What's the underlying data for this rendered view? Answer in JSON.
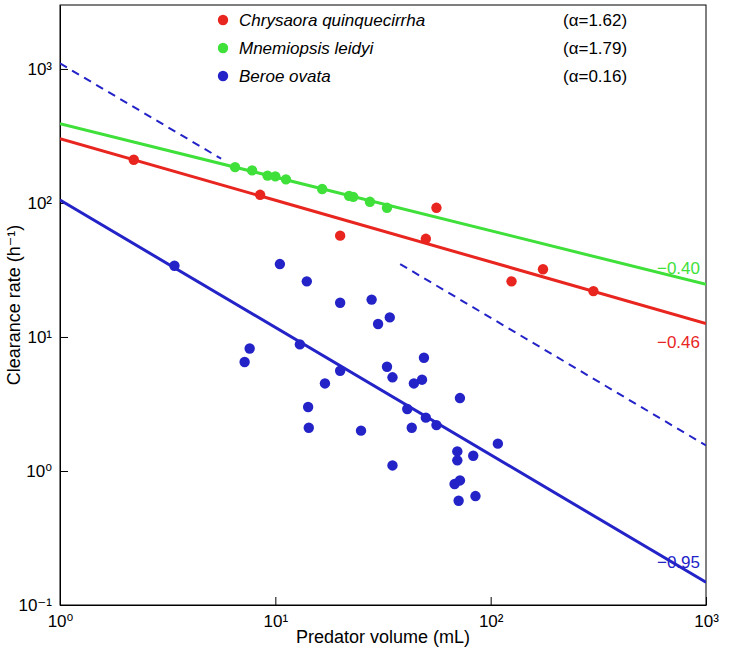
{
  "chart_data": {
    "type": "scatter",
    "xlabel": "Predator volume (mL)",
    "ylabel": "Clearance rate (h⁻¹)",
    "log": true,
    "grid": false,
    "legend": "top",
    "marker": "circle",
    "xlim": [
      1,
      1000
    ],
    "ylim": [
      0.1,
      3000
    ],
    "xticks": [
      {
        "value": 1,
        "label": "10⁰"
      },
      {
        "value": 10,
        "label": "10¹"
      },
      {
        "value": 100,
        "label": "10²"
      },
      {
        "value": 1000,
        "label": "10³"
      }
    ],
    "yticks": [
      {
        "value": 0.1,
        "label": "10⁻¹"
      },
      {
        "value": 1,
        "label": "10⁰"
      },
      {
        "value": 10,
        "label": "10¹"
      },
      {
        "value": 100,
        "label": "10²"
      },
      {
        "value": 1000,
        "label": "10³"
      }
    ],
    "series": [
      {
        "name": "Chrysaora quinquecirrha",
        "color": "#e8251f",
        "alpha": {
          "value": 1.62,
          "label": "(α=1.62)"
        },
        "x": [
          2.2,
          8.5,
          20,
          50,
          56,
          125,
          175,
          300
        ],
        "values": [
          210,
          115,
          57,
          54,
          92,
          26,
          32,
          22
        ],
        "fit": {
          "x": [
            1,
            1000
          ],
          "values": [
            302,
            12.6
          ]
        },
        "slope": {
          "value": -0.46,
          "label": "−0.46"
        }
      },
      {
        "name": "Mnemiopsis leidyi",
        "color": "#3fe03a",
        "alpha": {
          "value": 1.79,
          "label": "(α=1.79)"
        },
        "x": [
          6.5,
          7.8,
          9.2,
          10,
          11.2,
          16.5,
          22,
          23,
          27.5,
          33
        ],
        "values": [
          185,
          175,
          160,
          158,
          150,
          127,
          113,
          111,
          102,
          92
        ],
        "fit": {
          "x": [
            1,
            1000
          ],
          "values": [
            391,
            24.7
          ]
        },
        "slope": {
          "value": -0.4,
          "label": "−0.40"
        }
      },
      {
        "name": "Beroe ovata",
        "color": "#2323c8",
        "alpha": {
          "value": 0.16,
          "label": "(α=0.16)"
        },
        "x": [
          3.4,
          7.2,
          7.6,
          10.5,
          13,
          14,
          14.2,
          14.3,
          17,
          20,
          20,
          25,
          28,
          30,
          33,
          34,
          35,
          35,
          41,
          43,
          44,
          48,
          49,
          50,
          56,
          68,
          70,
          70,
          71,
          72,
          72,
          83,
          85,
          108
        ],
        "values": [
          34,
          6.5,
          8.2,
          35,
          8.8,
          26,
          3,
          2.1,
          4.5,
          5.6,
          18,
          2,
          19,
          12.5,
          6,
          14,
          5,
          1.1,
          2.9,
          2.1,
          4.5,
          4.8,
          7,
          2.5,
          2.2,
          0.8,
          1.4,
          1.2,
          0.6,
          0.85,
          3.5,
          1.3,
          0.65,
          1.6
        ],
        "fit": {
          "x": [
            1,
            1000
          ],
          "values": [
            105,
            0.148
          ]
        },
        "slope": {
          "value": -0.95,
          "label": "−0.95"
        },
        "bounds": [
          {
            "x": [
              1,
              5.6
            ],
            "values": [
              1100,
              214
            ],
            "line_style": "dashed"
          },
          {
            "x": [
              38,
              1000
            ],
            "values": [
              35,
              1.55
            ],
            "line_style": "dashed"
          }
        ]
      }
    ]
  }
}
